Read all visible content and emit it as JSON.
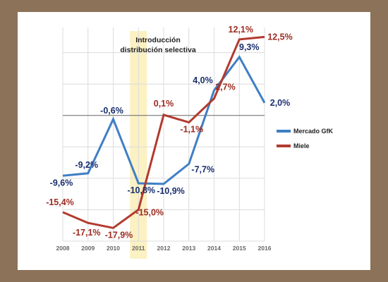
{
  "chart_data": {
    "type": "line",
    "annotation": [
      "Introducción",
      "distribución selectiva"
    ],
    "highlight_category": "2011",
    "categories": [
      "2008",
      "2009",
      "2010",
      "2011",
      "2012",
      "2013",
      "2014",
      "2015",
      "2016"
    ],
    "ylim": [
      -20,
      14
    ],
    "grid": true,
    "legend_position": "right",
    "series": [
      {
        "name": "Mercado GfK",
        "color": "#3f7fc4",
        "values": [
          -9.6,
          -9.2,
          -0.6,
          -10.8,
          -10.9,
          -7.7,
          4.0,
          9.3,
          2.0
        ],
        "labels": [
          "-9,6%",
          "-9,2%",
          "-0,6%",
          "-10,8%",
          "-10,9%",
          "-7,7%",
          "4,0%",
          "9,3%",
          "2,0%"
        ]
      },
      {
        "name": "Miele",
        "color": "#b23a2f",
        "values": [
          -15.4,
          -17.1,
          -17.9,
          -15.0,
          0.1,
          -1.1,
          2.7,
          12.1,
          12.5
        ],
        "labels": [
          "-15,4%",
          "-17,1%",
          "-17,9%",
          "-15,0%",
          "0,1%",
          "-1,1%",
          "2,7%",
          "12,1%",
          "12,5%"
        ]
      }
    ]
  }
}
